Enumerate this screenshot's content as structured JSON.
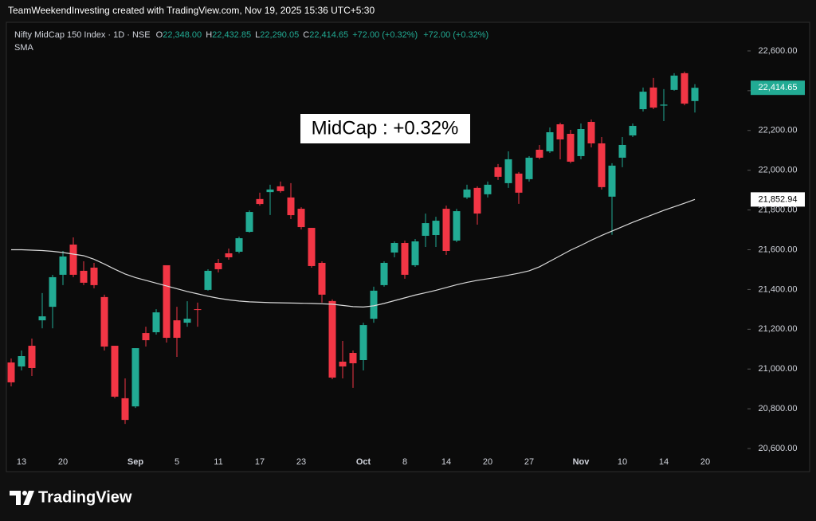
{
  "chart_data": {
    "type": "candlestick",
    "header": "TeamWeekendInvesting created with TradingView.com, Nov 19, 2025 15:36 UTC+5:30",
    "symbol": "Nifty MidCap 150 Index · 1D · NSE",
    "legend_fields": [
      {
        "key": "O",
        "value": "22,348.00"
      },
      {
        "key": "H",
        "value": "22,432.85"
      },
      {
        "key": "L",
        "value": "22,290.05"
      },
      {
        "key": "C",
        "value": "22,414.65"
      }
    ],
    "change_labels": [
      "+72.00 (+0.32%)",
      "+72.00 (+0.32%)"
    ],
    "annotation": "MidCap : +0.32%",
    "brand": "TradingView",
    "up_color": "#22ab94",
    "down_color": "#f23645",
    "categories": [
      null,
      "13",
      null,
      null,
      null,
      "20",
      null,
      null,
      null,
      null,
      null,
      null,
      "Sep",
      null,
      null,
      null,
      "5",
      null,
      null,
      null,
      "11",
      null,
      null,
      null,
      "17",
      null,
      null,
      null,
      "23",
      null,
      null,
      null,
      null,
      null,
      "Oct",
      null,
      null,
      null,
      "8",
      null,
      null,
      null,
      "14",
      null,
      null,
      null,
      "20",
      null,
      null,
      null,
      "27",
      null,
      null,
      null,
      null,
      "Nov",
      null,
      null,
      null,
      "10",
      null,
      null,
      null,
      "14",
      null,
      null,
      null,
      "20"
    ],
    "open": [
      21033,
      21013,
      21117,
      21245,
      21313,
      21474,
      21626,
      21494,
      21510,
      21362,
      21117,
      20853,
      20812,
      21181,
      21185,
      21522,
      21245,
      21233,
      21301,
      21398,
      21534,
      21582,
      21590,
      21690,
      21855,
      21890,
      21919,
      21863,
      21806,
      21710,
      21534,
      21342,
      21037,
      21081,
      21045,
      21253,
      21422,
      21586,
      21634,
      21522,
      21670,
      21674,
      21806,
      21646,
      21863,
      21911,
      21879,
      22015,
      21935,
      21983,
      21955,
      22103,
      22095,
      22231,
      22183,
      22071,
      22243,
      22135,
      21867,
      22063,
      22175,
      22307,
      22416,
      22325,
      22404,
      22488,
      22348,
      null
    ],
    "high": [
      21053,
      21093,
      21153,
      21382,
      21474,
      21594,
      21662,
      21542,
      21534,
      21374,
      21117,
      20953,
      21105,
      21213,
      21301,
      21522,
      21313,
      21341,
      21334,
      21502,
      21554,
      21606,
      21666,
      21798,
      21887,
      21927,
      21943,
      21935,
      21814,
      21710,
      21542,
      21350,
      21141,
      21093,
      21233,
      21414,
      21542,
      21642,
      21646,
      21654,
      21782,
      21766,
      21822,
      21806,
      21927,
      21919,
      21943,
      22031,
      22095,
      21991,
      22071,
      22127,
      22215,
      22239,
      22203,
      22235,
      22255,
      22167,
      22035,
      22167,
      22235,
      22416,
      22464,
      22408,
      22488,
      22496,
      22432.85,
      null
    ],
    "low": [
      20913,
      20993,
      20965,
      21205,
      21205,
      21422,
      21462,
      21422,
      21406,
      21093,
      20853,
      20724,
      20804,
      21113,
      21173,
      21133,
      21061,
      21213,
      21213,
      21394,
      21486,
      21550,
      21582,
      21686,
      21822,
      21775,
      21887,
      21754,
      21702,
      21510,
      21334,
      20949,
      20953,
      20905,
      20993,
      21233,
      21414,
      21562,
      21454,
      21514,
      21614,
      21614,
      21574,
      21638,
      21855,
      21726,
      21863,
      21951,
      21911,
      21831,
      21943,
      22055,
      22087,
      22055,
      22035,
      22055,
      22115,
      21903,
      21675,
      22015,
      22167,
      22295,
      22307,
      22247,
      22400,
      22327,
      22290.05,
      null
    ],
    "close": [
      20933,
      21065,
      21005,
      21265,
      21462,
      21566,
      21474,
      21434,
      21422,
      21113,
      20861,
      20744,
      21105,
      21145,
      21285,
      21157,
      21157,
      21253,
      21297,
      21494,
      21502,
      21562,
      21658,
      21790,
      21830,
      21903,
      21895,
      21774,
      21714,
      21518,
      21374,
      20957,
      21013,
      21029,
      21221,
      21394,
      21534,
      21634,
      21474,
      21642,
      21734,
      21746,
      21594,
      21794,
      21903,
      21782,
      21927,
      21967,
      22055,
      21887,
      22063,
      22063,
      22191,
      22155,
      22043,
      22207,
      22135,
      21915,
      22023,
      22127,
      22223,
      22395,
      22315,
      22330,
      22476,
      22335,
      22414.65,
      null
    ],
    "sma": {
      "name": "SMA",
      "color": "#d9d9d9",
      "value_label": "21,852.94",
      "values": [
        21600,
        21600,
        21598,
        21596,
        21592,
        21586,
        21578,
        21570,
        21552,
        21528,
        21502,
        21478,
        21460,
        21446,
        21432,
        21418,
        21404,
        21390,
        21378,
        21366,
        21356,
        21348,
        21342,
        21338,
        21336,
        21334,
        21333,
        21332,
        21331,
        21330,
        21328,
        21326,
        21320,
        21314,
        21312,
        21318,
        21330,
        21344,
        21358,
        21372,
        21384,
        21396,
        21410,
        21424,
        21436,
        21446,
        21454,
        21462,
        21472,
        21482,
        21494,
        21514,
        21542,
        21570,
        21598,
        21622,
        21648,
        21672,
        21694,
        21716,
        21738,
        21758,
        21778,
        21798,
        21816,
        21834,
        21852.94,
        null
      ]
    },
    "ylim": [
      20484,
      22744
    ],
    "yticks": [
      {
        "value": 20600,
        "label": "20,600.00"
      },
      {
        "value": 20800,
        "label": "20,800.00"
      },
      {
        "value": 21000,
        "label": "21,000.00"
      },
      {
        "value": 21200,
        "label": "21,200.00"
      },
      {
        "value": 21400,
        "label": "21,400.00"
      },
      {
        "value": 21600,
        "label": "21,600.00"
      },
      {
        "value": 21800,
        "label": "21,800.00"
      },
      {
        "value": 22000,
        "label": "22,000.00"
      },
      {
        "value": 22200,
        "label": "22,200.00"
      },
      {
        "value": 22400,
        "label": "22,400.00"
      },
      {
        "value": 22600,
        "label": "22,600.00"
      }
    ],
    "grid": false
  }
}
